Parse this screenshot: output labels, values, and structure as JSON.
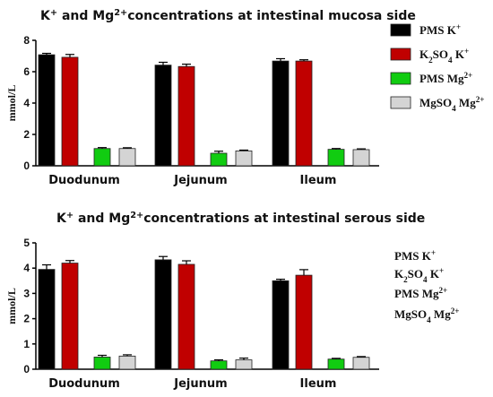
{
  "chart_data": [
    {
      "type": "bar",
      "title": "K+ and Mg2+concentrations at intestinal mucosa side",
      "ylabel": "mmol/L",
      "ylim": [
        0,
        8
      ],
      "yticks": [
        0,
        2,
        4,
        6,
        8
      ],
      "categories": [
        "Duodunum",
        "Jejunum",
        "Ileum"
      ],
      "legend": "right",
      "legend_swatches": true,
      "series": [
        {
          "name": "PMS K+",
          "color": "#000000",
          "values": [
            7.08,
            6.42,
            6.68
          ],
          "errors": [
            0.09,
            0.18,
            0.15
          ]
        },
        {
          "name": "K2SO4 K+",
          "color": "#c00000",
          "values": [
            6.92,
            6.33,
            6.68
          ],
          "errors": [
            0.18,
            0.15,
            0.08
          ]
        },
        {
          "name": "PMS Mg2+",
          "color": "#11cc11",
          "values": [
            1.1,
            0.8,
            1.05
          ],
          "errors": [
            0.06,
            0.13,
            0.05
          ]
        },
        {
          "name": "MgSO4 Mg2+",
          "color": "#d4d4d4",
          "values": [
            1.1,
            0.95,
            1.03
          ],
          "errors": [
            0.05,
            0.05,
            0.05
          ]
        }
      ]
    },
    {
      "type": "bar",
      "title": "K+ and Mg2+concentrations at intestinal serous side",
      "ylabel": "mmol/L",
      "ylim": [
        0,
        5
      ],
      "yticks": [
        0,
        1,
        2,
        3,
        4,
        5
      ],
      "categories": [
        "Duodunum",
        "Jejunum",
        "Ileum"
      ],
      "legend": "right",
      "legend_swatches": false,
      "series": [
        {
          "name": "PMS K+",
          "color": "#000000",
          "values": [
            3.95,
            4.33,
            3.5
          ],
          "errors": [
            0.18,
            0.13,
            0.06
          ]
        },
        {
          "name": "K2SO4 K+",
          "color": "#c00000",
          "values": [
            4.2,
            4.15,
            3.72
          ],
          "errors": [
            0.1,
            0.14,
            0.22
          ]
        },
        {
          "name": "PMS Mg2+",
          "color": "#11cc11",
          "values": [
            0.48,
            0.33,
            0.4
          ],
          "errors": [
            0.07,
            0.04,
            0.03
          ]
        },
        {
          "name": "MgSO4 Mg2+",
          "color": "#d4d4d4",
          "values": [
            0.52,
            0.37,
            0.47
          ],
          "errors": [
            0.05,
            0.07,
            0.03
          ]
        }
      ]
    }
  ]
}
